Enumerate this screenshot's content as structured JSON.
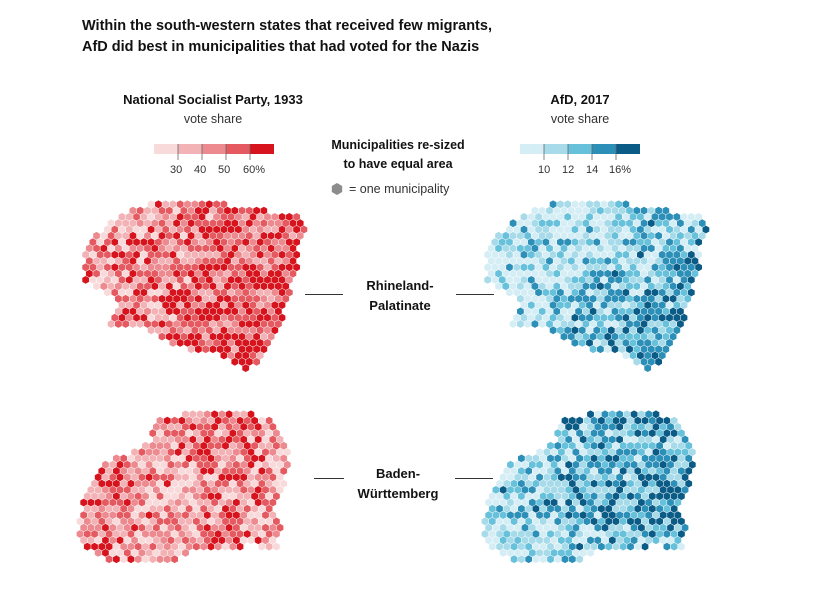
{
  "headline": {
    "line1": "Within the south-western states that received few migrants,",
    "line2": "AfD did best in municipalities that had voted for the Nazis"
  },
  "left_legend": {
    "title": "National Socialist Party, 1933",
    "subtitle": "vote share",
    "ticks": [
      "30",
      "40",
      "50",
      "60%"
    ],
    "colors": [
      "#f9dadb",
      "#f3b3b6",
      "#ec8a8f",
      "#e45a60",
      "#d7141d"
    ]
  },
  "right_legend": {
    "title": "AfD, 2017",
    "subtitle": "vote share",
    "ticks": [
      "10",
      "12",
      "14",
      "16%"
    ],
    "colors": [
      "#d5eef5",
      "#a7dbe9",
      "#68c1db",
      "#2c8fb8",
      "#0a5c87"
    ]
  },
  "center": {
    "note_line1": "Municipalities re-sized",
    "note_line2": "to have equal area",
    "hex_key": "= one municipality",
    "hex_color": "#8c8c8c"
  },
  "states": [
    {
      "line1": "Rhineland-",
      "line2": "Palatinate"
    },
    {
      "line1": "Baden-",
      "line2": "Württemberg"
    }
  ]
}
